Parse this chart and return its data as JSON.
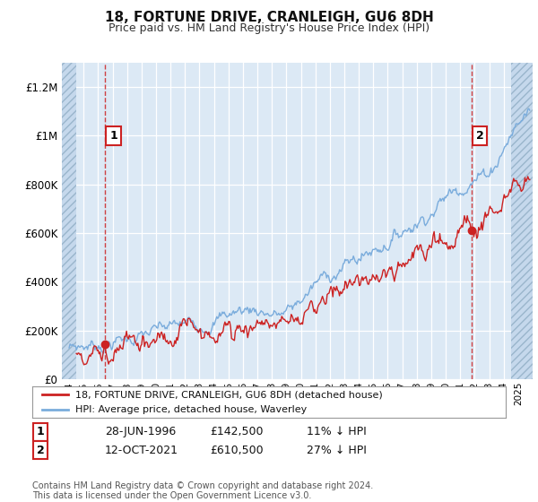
{
  "title": "18, FORTUNE DRIVE, CRANLEIGH, GU6 8DH",
  "subtitle": "Price paid vs. HM Land Registry's House Price Index (HPI)",
  "title_fontsize": 11,
  "subtitle_fontsize": 9,
  "background_color": "#ffffff",
  "plot_bg_color": "#dce9f5",
  "grid_color": "#ffffff",
  "red_line_color": "#cc2222",
  "blue_line_color": "#7aacdc",
  "marker1_x": 1996.49,
  "marker1_y": 142500,
  "marker2_x": 2021.78,
  "marker2_y": 610500,
  "vline1_color": "#cc2222",
  "vline2_color": "#cc2222",
  "xlim": [
    1993.5,
    2026.0
  ],
  "ylim": [
    0,
    1300000
  ],
  "yticks": [
    0,
    200000,
    400000,
    600000,
    800000,
    1000000,
    1200000
  ],
  "ytick_labels": [
    "£0",
    "£200K",
    "£400K",
    "£600K",
    "£800K",
    "£1M",
    "£1.2M"
  ],
  "xticks": [
    1994,
    1995,
    1996,
    1997,
    1998,
    1999,
    2000,
    2001,
    2002,
    2003,
    2004,
    2005,
    2006,
    2007,
    2008,
    2009,
    2010,
    2011,
    2012,
    2013,
    2014,
    2015,
    2016,
    2017,
    2018,
    2019,
    2020,
    2021,
    2022,
    2023,
    2024,
    2025
  ],
  "legend_line1": "18, FORTUNE DRIVE, CRANLEIGH, GU6 8DH (detached house)",
  "legend_line2": "HPI: Average price, detached house, Waverley",
  "table_row1": [
    "1",
    "28-JUN-1996",
    "£142,500",
    "11% ↓ HPI"
  ],
  "table_row2": [
    "2",
    "12-OCT-2021",
    "£610,500",
    "27% ↓ HPI"
  ],
  "footer": "Contains HM Land Registry data © Crown copyright and database right 2024.\nThis data is licensed under the Open Government Licence v3.0.",
  "hatch_left_end": 1994.5,
  "hatch_right_start": 2024.5
}
